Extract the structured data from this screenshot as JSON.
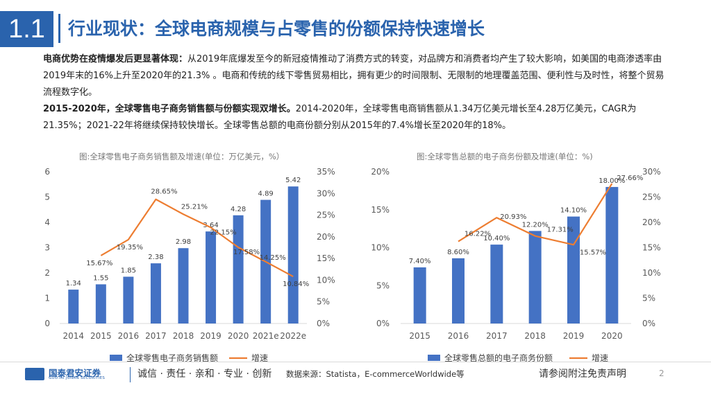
{
  "header": {
    "section": "1.1",
    "title": "行业现状：全球电商规模与占零售的份额保持快速增长"
  },
  "paragraph": {
    "p1_bold": "电商优势在疫情爆发后更显著体现：",
    "p1_text": "从2019年底爆发至今的新冠疫情推动了消费方式的转变，对品牌方和消费者均产生了较大影响，如美国的电商渗透率由2019年末的16%上升至2020年的21.3% 。电商和传统的线下零售贸易相比，拥有更少的时间限制、无限制的地理覆盖范围、便利性与及时性，将整个贸易流程数字化。",
    "p2_bold": "2015-2020年，全球零售电子商务销售额与份额实现双增长。",
    "p2_text": "2014-2020年，全球零售电商销售额从1.34万亿美元增长至4.28万亿美元，CAGR为21.35%；2021-22年将继续保持较快增长。全球零售总额的电商份额分别从2015年的7.4%增长至2020年的18%。"
  },
  "chart_data": [
    {
      "type": "bar",
      "title": "图:全球零售电子商务销售额及增速(单位：万亿美元，%）",
      "categories": [
        "2014",
        "2015",
        "2016",
        "2017",
        "2018",
        "2019",
        "2020",
        "2021e",
        "2022e"
      ],
      "series": [
        {
          "name": "全球零售电子商务销售额",
          "type": "bar",
          "axis": "left",
          "color": "#4472c4",
          "values": [
            1.34,
            1.55,
            1.85,
            2.38,
            2.98,
            3.64,
            4.28,
            4.89,
            5.42
          ],
          "labels": [
            "1.34",
            "1.55",
            "1.85",
            "2.38",
            "2.98",
            "3.64",
            "4.28",
            "4.89",
            "5.42"
          ]
        },
        {
          "name": "增速",
          "type": "line",
          "axis": "right",
          "color": "#ed7d31",
          "values": [
            null,
            15.67,
            19.35,
            28.65,
            25.21,
            22.15,
            17.58,
            14.25,
            10.84
          ],
          "labels": [
            "",
            "15.67%",
            "19.35%",
            "28.65%",
            "25.21%",
            "22.15%",
            "17.58%",
            "14.25%",
            "10.84%"
          ]
        }
      ],
      "ylim_left": [
        0,
        6
      ],
      "yticks_left": [
        "0",
        "1",
        "2",
        "3",
        "4",
        "5",
        "6"
      ],
      "ylim_right": [
        0,
        35
      ],
      "yticks_right": [
        "0%",
        "5%",
        "10%",
        "15%",
        "20%",
        "25%",
        "30%",
        "35%"
      ],
      "legend": [
        "全球零售电子商务销售额",
        "增速"
      ],
      "legend_position": "bottom"
    },
    {
      "type": "bar",
      "title": "图:全球零售总额的电子商务份额及增速(单位：%)",
      "categories": [
        "2015",
        "2016",
        "2017",
        "2018",
        "2019",
        "2020"
      ],
      "series": [
        {
          "name": "全球零售总额的电子商务份额",
          "type": "bar",
          "axis": "left",
          "color": "#4472c4",
          "values": [
            7.4,
            8.6,
            10.4,
            12.2,
            14.1,
            18.0
          ],
          "labels": [
            "7.40%",
            "8.60%",
            "10.40%",
            "12.20%",
            "14.10%",
            "18.00%"
          ]
        },
        {
          "name": "增速",
          "type": "line",
          "axis": "right",
          "color": "#ed7d31",
          "values": [
            null,
            16.22,
            20.93,
            17.31,
            15.57,
            27.66
          ],
          "labels": [
            "",
            "16.22%",
            "20.93%",
            "17.31%",
            "15.57%",
            "27.66%"
          ]
        }
      ],
      "ylim_left": [
        0,
        20
      ],
      "yticks_left": [
        "0%",
        "5%",
        "10%",
        "15%",
        "20%"
      ],
      "ylim_right": [
        0,
        30
      ],
      "yticks_right": [
        "0%",
        "5%",
        "10%",
        "15%",
        "20%",
        "25%",
        "30%"
      ],
      "legend": [
        "全球零售总额的电子商务份额",
        "增速"
      ],
      "legend_position": "bottom"
    }
  ],
  "footer": {
    "company": "国泰君安证券",
    "company_en": "GUOTAI JUNAN SECURITIES",
    "slogan": "诚信 · 责任 · 亲和 · 专业 · 创新",
    "source": "数据来源：Statista，E-commerceWorldwide等",
    "disclaimer": "请参阅附注免责声明",
    "page": "2"
  },
  "colors": {
    "brand": "#2a63ad",
    "bar": "#4472c4",
    "line": "#ed7d31"
  }
}
